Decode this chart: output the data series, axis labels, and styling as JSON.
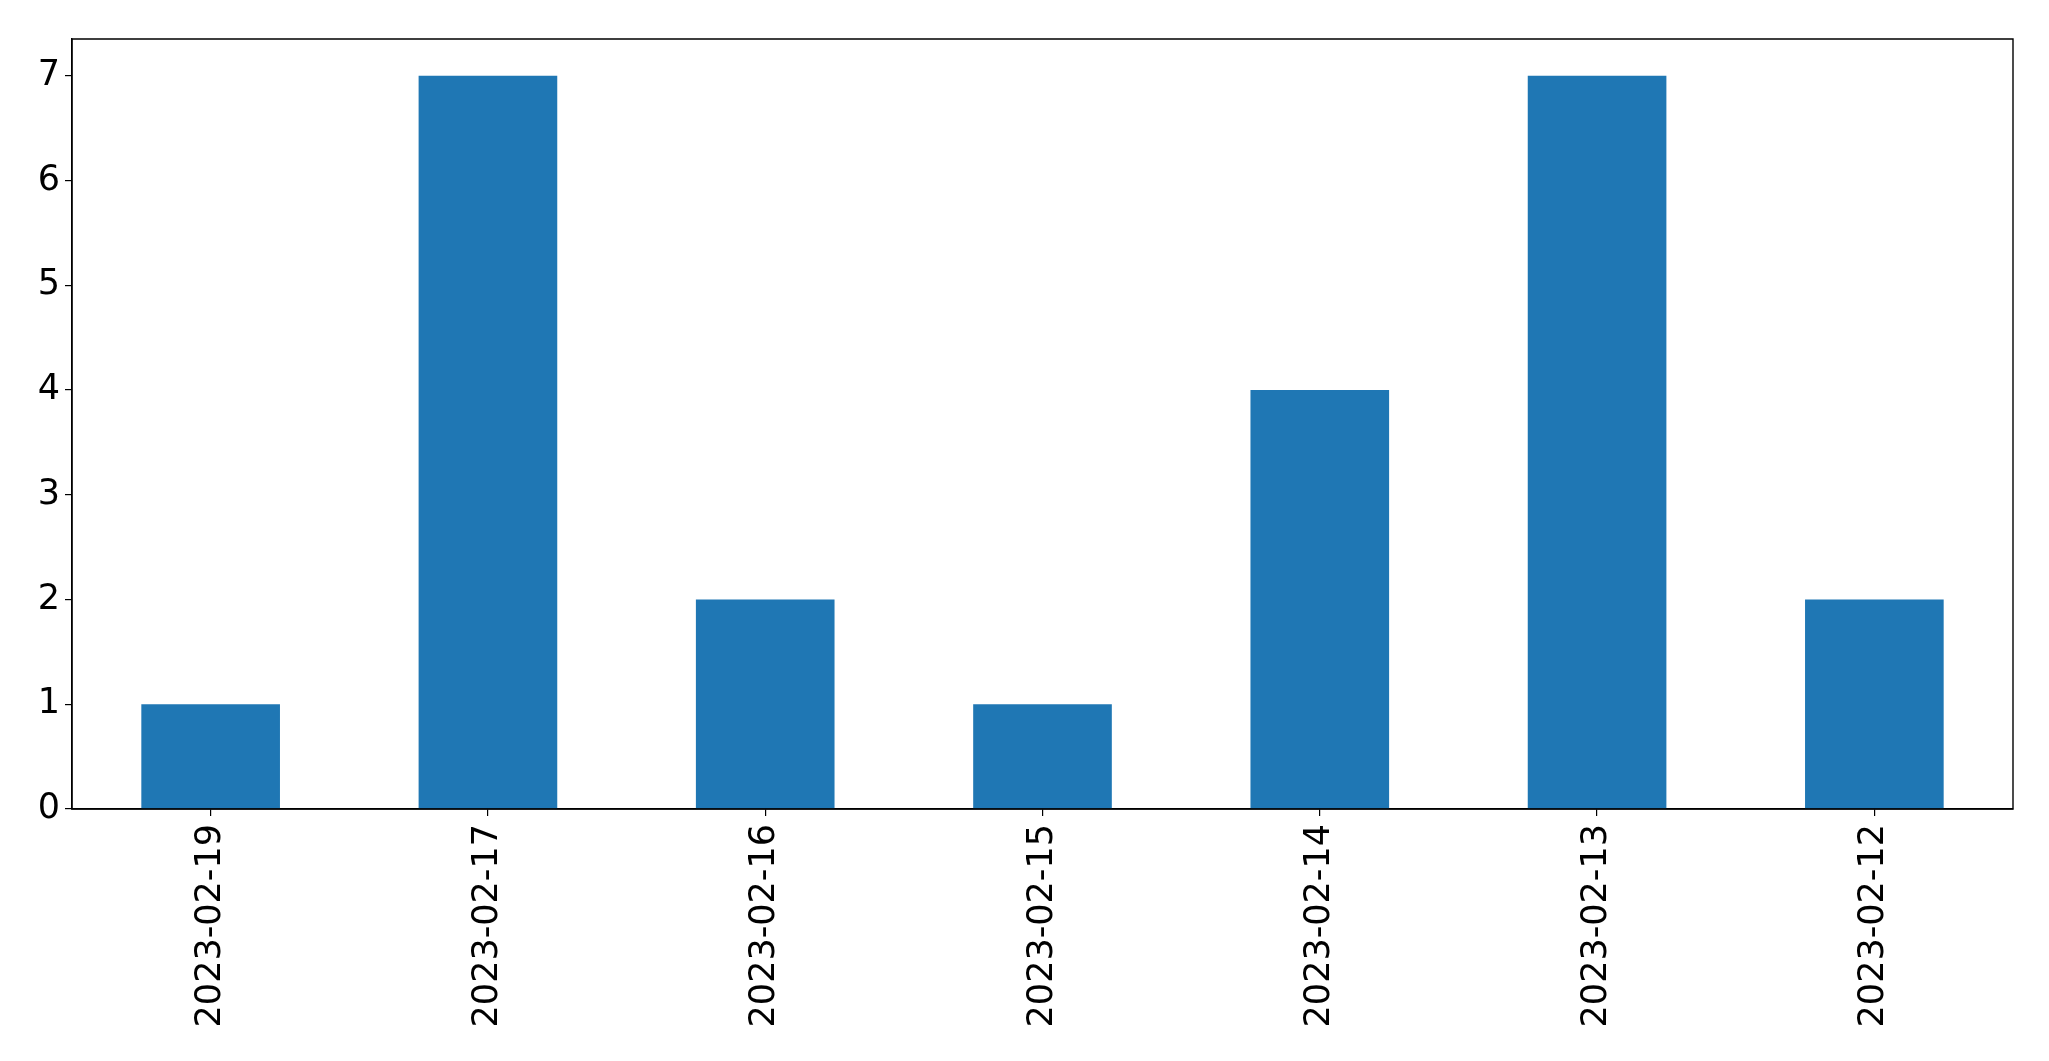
{
  "chart_data": {
    "type": "bar",
    "categories": [
      "2023-02-19",
      "2023-02-17",
      "2023-02-16",
      "2023-02-15",
      "2023-02-14",
      "2023-02-13",
      "2023-02-12"
    ],
    "values": [
      1,
      7,
      2,
      1,
      4,
      7,
      2
    ],
    "color": "#1f77b4",
    "ylim": [
      0,
      7.35
    ],
    "yticks": [
      0,
      1,
      2,
      3,
      4,
      5,
      6,
      7
    ],
    "grid": false
  }
}
